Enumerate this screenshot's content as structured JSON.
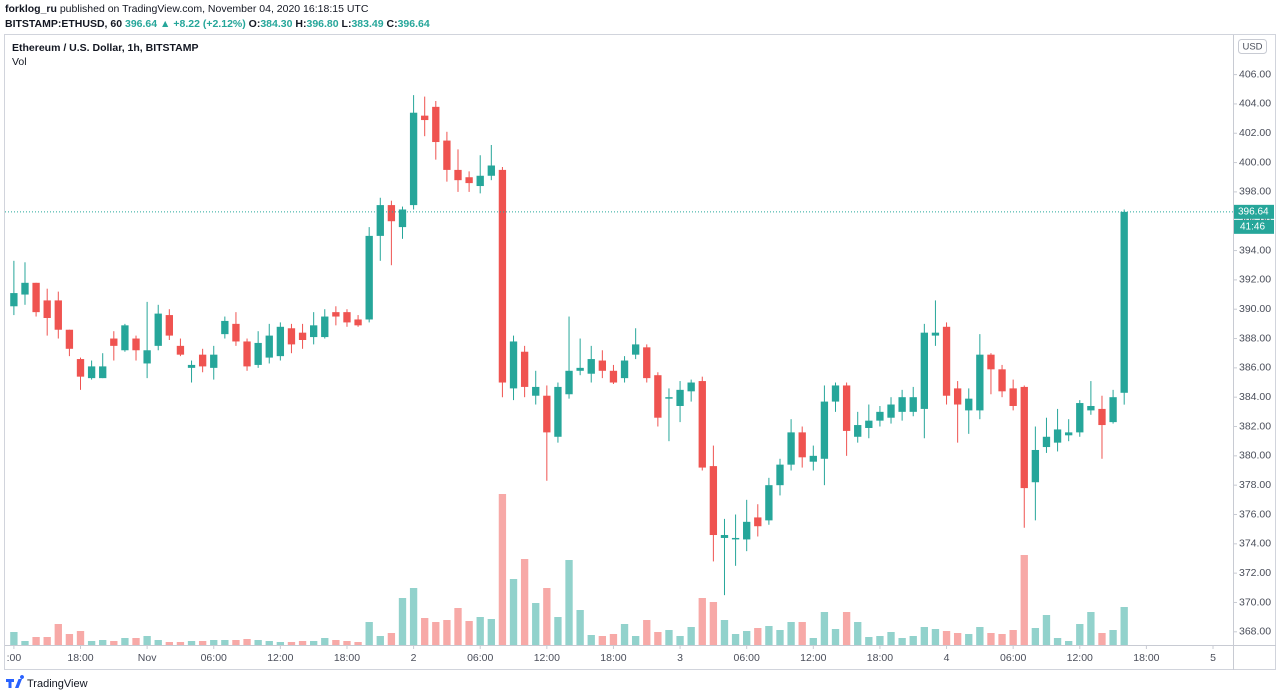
{
  "header": {
    "author": "forklog_ru",
    "published": "published on TradingView.com, November 04, 2020 16:18:15 UTC",
    "symbol": "BITSTAMP:ETHUSD, 60",
    "last": "396.64",
    "change": "▲ +8.22 (+2.12%)",
    "open_label": "O:",
    "open": "384.30",
    "high_label": "H:",
    "high": "396.80",
    "low_label": "L:",
    "low": "383.49",
    "close_label": "C:",
    "close": "396.64"
  },
  "chart_data": {
    "type": "candlestick",
    "title": "Ethereum / U.S. Dollar, 1h, BITSTAMP",
    "subtitle": "Vol",
    "currency": "USD",
    "last_price_label": "396.64",
    "countdown": "41:46",
    "up_color": "#26a69a",
    "down_color": "#ef5350",
    "grid": false,
    "xlim": [
      -0.8,
      109.8
    ],
    "xticks": [
      {
        "value": 0,
        "label": ":00"
      },
      {
        "value": 6,
        "label": "18:00"
      },
      {
        "value": 12,
        "label": "Nov"
      },
      {
        "value": 18,
        "label": "06:00"
      },
      {
        "value": 24,
        "label": "12:00"
      },
      {
        "value": 30,
        "label": "18:00"
      },
      {
        "value": 36,
        "label": "2"
      },
      {
        "value": 42,
        "label": "06:00"
      },
      {
        "value": 48,
        "label": "12:00"
      },
      {
        "value": 54,
        "label": "18:00"
      },
      {
        "value": 60,
        "label": "3"
      },
      {
        "value": 66,
        "label": "06:00"
      },
      {
        "value": 72,
        "label": "12:00"
      },
      {
        "value": 78,
        "label": "18:00"
      },
      {
        "value": 84,
        "label": "4"
      },
      {
        "value": 90,
        "label": "06:00"
      },
      {
        "value": 96,
        "label": "12:00"
      },
      {
        "value": 102,
        "label": "18:00"
      },
      {
        "value": 108,
        "label": "5"
      }
    ],
    "ylim": [
      367.1,
      408.7
    ],
    "yticks": [
      {
        "value": 368,
        "label": "368.00"
      },
      {
        "value": 370,
        "label": "370.00"
      },
      {
        "value": 372,
        "label": "372.00"
      },
      {
        "value": 374,
        "label": "374.00"
      },
      {
        "value": 376,
        "label": "376.00"
      },
      {
        "value": 378,
        "label": "378.00"
      },
      {
        "value": 380,
        "label": "380.00"
      },
      {
        "value": 382,
        "label": "382.00"
      },
      {
        "value": 384,
        "label": "384.00"
      },
      {
        "value": 386,
        "label": "386.00"
      },
      {
        "value": 388,
        "label": "388.00"
      },
      {
        "value": 390,
        "label": "390.00"
      },
      {
        "value": 392,
        "label": "392.00"
      },
      {
        "value": 394,
        "label": "394.00"
      },
      {
        "value": 396,
        "label": "396.00"
      },
      {
        "value": 398,
        "label": "398.00"
      },
      {
        "value": 400,
        "label": "400.00"
      },
      {
        "value": 402,
        "label": "402.00"
      },
      {
        "value": 404,
        "label": "404.00"
      },
      {
        "value": 406,
        "label": "406.00"
      }
    ],
    "volume_ylim": [
      0,
      200
    ],
    "open": [
      390.2,
      391.0,
      391.8,
      390.6,
      390.6,
      388.6,
      386.6,
      385.3,
      385.3,
      388.0,
      387.2,
      388.0,
      386.3,
      387.5,
      389.6,
      387.5,
      386.0,
      386.9,
      386.0,
      388.3,
      389.0,
      387.8,
      386.2,
      386.7,
      386.8,
      388.7,
      388.4,
      388.1,
      388.1,
      389.8,
      389.8,
      389.3,
      389.3,
      395.0,
      397.1,
      395.6,
      397.1,
      403.2,
      403.8,
      401.5,
      399.5,
      399.0,
      398.4,
      399.1,
      399.5,
      384.6,
      387.1,
      384.1,
      384.1,
      381.3,
      384.2,
      385.8,
      385.6,
      386.5,
      385.8,
      385.3,
      386.9,
      387.4,
      385.5,
      383.9,
      383.4,
      384.4,
      385.1,
      379.3,
      374.4,
      374.3,
      374.3,
      375.8,
      375.6,
      378.0,
      379.4,
      381.6,
      379.6,
      379.8,
      383.7,
      384.8,
      381.3,
      381.9,
      382.4,
      382.6,
      383.0,
      383.0,
      383.2,
      388.2,
      388.8,
      384.6,
      383.1,
      383.1,
      386.9,
      385.9,
      384.6,
      384.7,
      378.2,
      380.6,
      380.9,
      381.4,
      381.6,
      383.1,
      383.2,
      382.3,
      384.3
    ],
    "high": [
      393.3,
      393.2,
      391.8,
      391.4,
      391.2,
      388.6,
      386.7,
      386.5,
      387.0,
      388.5,
      389.0,
      388.2,
      390.5,
      390.3,
      390.0,
      388.0,
      386.5,
      387.3,
      387.5,
      389.5,
      389.8,
      388.0,
      388.5,
      389.0,
      389.1,
      389.0,
      389.0,
      389.8,
      390.0,
      390.2,
      390.0,
      389.6,
      395.6,
      397.6,
      397.4,
      397.0,
      404.6,
      404.5,
      404.2,
      402.1,
      400.9,
      399.4,
      400.5,
      401.2,
      399.7,
      388.2,
      387.5,
      385.8,
      384.8,
      385.0,
      389.5,
      388.0,
      387.5,
      387.2,
      386.2,
      386.8,
      388.7,
      387.6,
      385.7,
      384.6,
      385.1,
      385.2,
      385.4,
      380.7,
      375.7,
      376.0,
      377.0,
      376.7,
      378.5,
      379.8,
      382.5,
      382.0,
      380.7,
      384.8,
      385.0,
      385.0,
      383.0,
      383.5,
      383.4,
      384.0,
      384.5,
      384.7,
      389.0,
      390.6,
      389.1,
      385.1,
      384.6,
      388.3,
      387.0,
      386.2,
      385.2,
      384.8,
      382.0,
      382.6,
      383.2,
      382.5,
      383.8,
      385.1,
      384.1,
      384.5,
      396.8
    ],
    "low": [
      389.6,
      390.3,
      389.5,
      388.2,
      388.0,
      386.8,
      384.5,
      385.2,
      385.3,
      386.5,
      387.1,
      386.5,
      385.3,
      387.2,
      387.9,
      386.8,
      385.0,
      385.7,
      385.2,
      388.0,
      387.5,
      385.8,
      386.0,
      386.3,
      386.5,
      387.0,
      387.3,
      387.6,
      388.0,
      388.9,
      388.8,
      388.8,
      389.1,
      393.3,
      393.0,
      394.8,
      396.8,
      401.8,
      400.2,
      398.7,
      398.0,
      398.0,
      397.9,
      398.8,
      384.0,
      383.8,
      384.0,
      383.5,
      378.3,
      380.9,
      383.9,
      385.5,
      385.0,
      385.3,
      384.9,
      385.0,
      386.6,
      385.0,
      382.0,
      381.0,
      382.3,
      383.7,
      379.0,
      372.8,
      370.5,
      372.5,
      373.5,
      374.5,
      375.3,
      377.3,
      379.0,
      379.2,
      379.0,
      378.0,
      383.0,
      380.0,
      380.9,
      381.2,
      382.0,
      382.2,
      382.4,
      382.7,
      381.2,
      387.5,
      383.5,
      380.9,
      381.5,
      382.5,
      384.2,
      384.0,
      383.1,
      375.1,
      375.6,
      380.2,
      380.3,
      381.0,
      381.3,
      382.8,
      379.8,
      382.2,
      383.49
    ],
    "close": [
      391.1,
      391.8,
      389.8,
      389.4,
      388.6,
      387.3,
      385.4,
      386.1,
      386.1,
      387.5,
      388.9,
      387.2,
      387.2,
      389.7,
      388.2,
      386.9,
      386.2,
      386.1,
      386.9,
      389.2,
      387.8,
      386.1,
      387.7,
      388.2,
      388.8,
      387.6,
      387.9,
      388.9,
      389.5,
      389.5,
      389.1,
      388.9,
      395.0,
      397.1,
      396.0,
      396.8,
      403.4,
      402.9,
      401.4,
      399.5,
      398.8,
      398.6,
      399.1,
      399.8,
      385.0,
      387.8,
      384.7,
      384.7,
      381.6,
      384.7,
      385.8,
      386.0,
      386.6,
      385.8,
      385.0,
      386.5,
      387.6,
      385.3,
      382.6,
      384.0,
      384.5,
      385.0,
      379.2,
      374.6,
      374.6,
      374.4,
      375.5,
      375.2,
      378.0,
      379.4,
      381.6,
      379.9,
      380.0,
      383.7,
      384.8,
      381.7,
      382.1,
      382.4,
      383.0,
      383.5,
      384.0,
      384.0,
      388.4,
      388.4,
      384.1,
      383.5,
      383.9,
      386.9,
      385.9,
      384.4,
      383.4,
      377.8,
      380.4,
      381.3,
      381.8,
      381.6,
      383.6,
      383.4,
      382.1,
      384.0,
      396.64
    ],
    "volume": [
      13,
      4,
      8,
      8,
      21,
      11,
      14,
      4,
      5,
      4,
      7,
      7,
      9,
      5,
      3,
      3,
      4,
      4,
      5,
      5,
      5,
      6,
      5,
      4,
      3,
      3,
      4,
      4,
      7,
      5,
      4,
      3,
      23,
      9,
      12,
      47,
      57,
      27,
      23,
      25,
      37,
      24,
      28,
      26,
      151,
      66,
      86,
      42,
      57,
      28,
      85,
      35,
      10,
      9,
      11,
      21,
      9,
      25,
      13,
      15,
      9,
      18,
      47,
      43,
      25,
      11,
      14,
      17,
      19,
      15,
      23,
      23,
      7,
      33,
      16,
      33,
      23,
      8,
      9,
      13,
      7,
      9,
      18,
      16,
      14,
      12,
      11,
      18,
      12,
      11,
      15,
      90,
      17,
      30,
      7,
      4,
      21,
      33,
      12,
      15,
      38
    ]
  },
  "footer": {
    "brand": "TradingView"
  }
}
